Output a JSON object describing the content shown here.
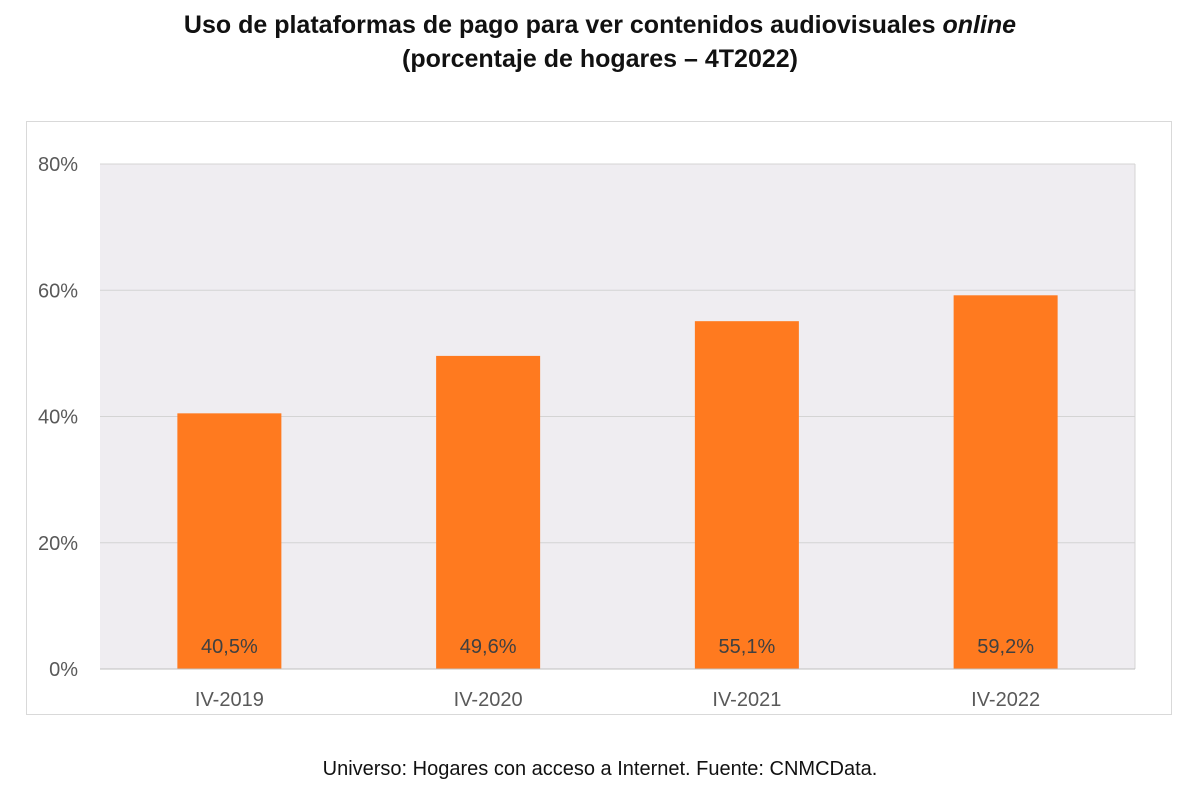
{
  "title": {
    "line1_main": "Uso de plataformas de pago para ver contenidos audiovisuales ",
    "line1_italic": "online",
    "line2": "(porcentaje de hogares – 4T2022)"
  },
  "footer": {
    "note": "Universo: Hogares con acceso a Internet. Fuente: CNMCData."
  },
  "chart_data": {
    "type": "bar",
    "categories": [
      "IV-2019",
      "IV-2020",
      "IV-2021",
      "IV-2022"
    ],
    "values": [
      40.5,
      49.6,
      55.1,
      59.2
    ],
    "data_labels": [
      "40,5%",
      "49,6%",
      "55,1%",
      "59,2%"
    ],
    "ylim": [
      0,
      80
    ],
    "yticks": [
      0,
      20,
      40,
      60,
      80
    ],
    "ytick_labels": [
      "0%",
      "20%",
      "40%",
      "60%",
      "80%"
    ],
    "grid": true,
    "legend": "none",
    "colors": {
      "bar": "#ff7a1f",
      "plot_background": "#efedf1",
      "grid": "#d4d4d4"
    }
  }
}
